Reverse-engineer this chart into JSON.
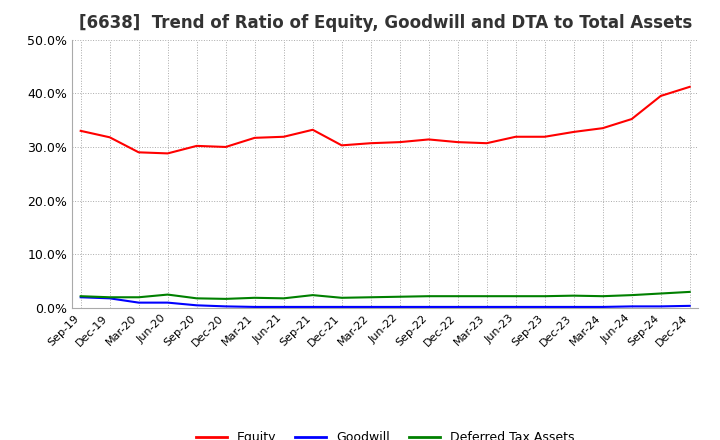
{
  "title": "[6638]  Trend of Ratio of Equity, Goodwill and DTA to Total Assets",
  "x_labels": [
    "Sep-19",
    "Dec-19",
    "Mar-20",
    "Jun-20",
    "Sep-20",
    "Dec-20",
    "Mar-21",
    "Jun-21",
    "Sep-21",
    "Dec-21",
    "Mar-22",
    "Jun-22",
    "Sep-22",
    "Dec-22",
    "Mar-23",
    "Jun-23",
    "Sep-23",
    "Dec-23",
    "Mar-24",
    "Jun-24",
    "Sep-24",
    "Dec-24"
  ],
  "equity": [
    0.33,
    0.318,
    0.29,
    0.288,
    0.302,
    0.3,
    0.317,
    0.319,
    0.332,
    0.303,
    0.307,
    0.309,
    0.314,
    0.309,
    0.307,
    0.319,
    0.319,
    0.328,
    0.335,
    0.352,
    0.395,
    0.412
  ],
  "goodwill": [
    0.02,
    0.018,
    0.01,
    0.01,
    0.005,
    0.003,
    0.002,
    0.002,
    0.002,
    0.002,
    0.002,
    0.002,
    0.002,
    0.002,
    0.002,
    0.002,
    0.002,
    0.002,
    0.002,
    0.003,
    0.003,
    0.004
  ],
  "dta": [
    0.022,
    0.02,
    0.02,
    0.025,
    0.018,
    0.017,
    0.019,
    0.018,
    0.024,
    0.019,
    0.02,
    0.021,
    0.022,
    0.022,
    0.022,
    0.022,
    0.022,
    0.023,
    0.022,
    0.024,
    0.027,
    0.03
  ],
  "equity_color": "#FF0000",
  "goodwill_color": "#0000FF",
  "dta_color": "#008000",
  "ylim": [
    0.0,
    0.5
  ],
  "yticks": [
    0.0,
    0.1,
    0.2,
    0.3,
    0.4,
    0.5
  ],
  "background_color": "#FFFFFF",
  "plot_bg_color": "#FFFFFF",
  "grid_color": "#AAAAAA",
  "title_fontsize": 12,
  "tick_fontsize": 8,
  "legend_labels": [
    "Equity",
    "Goodwill",
    "Deferred Tax Assets"
  ]
}
